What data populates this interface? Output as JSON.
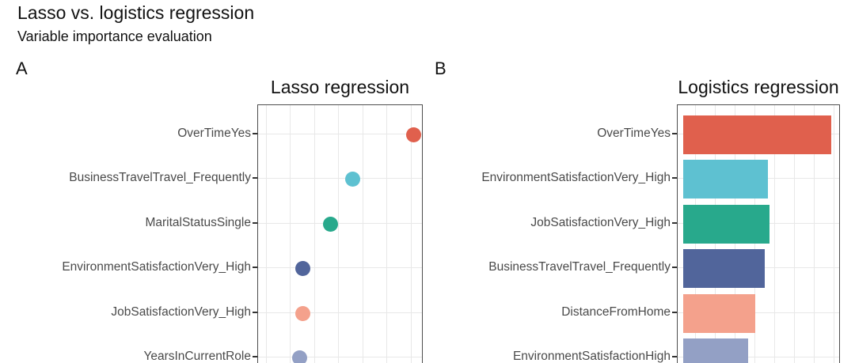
{
  "header": {
    "title": "Lasso vs. logistics regression",
    "subtitle": "Variable importance evaluation"
  },
  "chart_data": [
    {
      "type": "scatter",
      "orientation": "horizontal",
      "panel_label": "A",
      "title": "Lasso regression",
      "ylabel": "",
      "xlabel": "",
      "grid": true,
      "legend": "none",
      "categories": [
        "OverTimeYes",
        "BusinessTravelTravel_Frequently",
        "MaritalStatusSingle",
        "EnvironmentSatisfactionVery_High",
        "JobSatisfactionVery_High",
        "YearsInCurrentRole"
      ],
      "values": [
        0.94,
        0.57,
        0.44,
        0.27,
        0.27,
        0.25
      ],
      "values_unit": "fraction of visible x-axis span (numeric axis cropped out of view)",
      "point_colors": [
        "#E0604D",
        "#5EC1D1",
        "#28A98C",
        "#51659B",
        "#F4A18C",
        "#93A0C5"
      ]
    },
    {
      "type": "bar",
      "orientation": "horizontal",
      "panel_label": "B",
      "title": "Logistics regression",
      "ylabel": "",
      "xlabel": "",
      "grid": true,
      "legend": "none",
      "categories": [
        "OverTimeYes",
        "EnvironmentSatisfactionVery_High",
        "JobSatisfactionVery_High",
        "BusinessTravelTravel_Frequently",
        "DistanceFromHome",
        "EnvironmentSatisfactionHigh"
      ],
      "values": [
        0.91,
        0.52,
        0.53,
        0.5,
        0.44,
        0.4
      ],
      "values_unit": "bar length as fraction of visible x-axis span (numeric axis cropped out of view)",
      "bar_colors": [
        "#E0604D",
        "#5EC1D1",
        "#28A98C",
        "#51659B",
        "#F4A18C",
        "#93A0C5"
      ]
    }
  ]
}
